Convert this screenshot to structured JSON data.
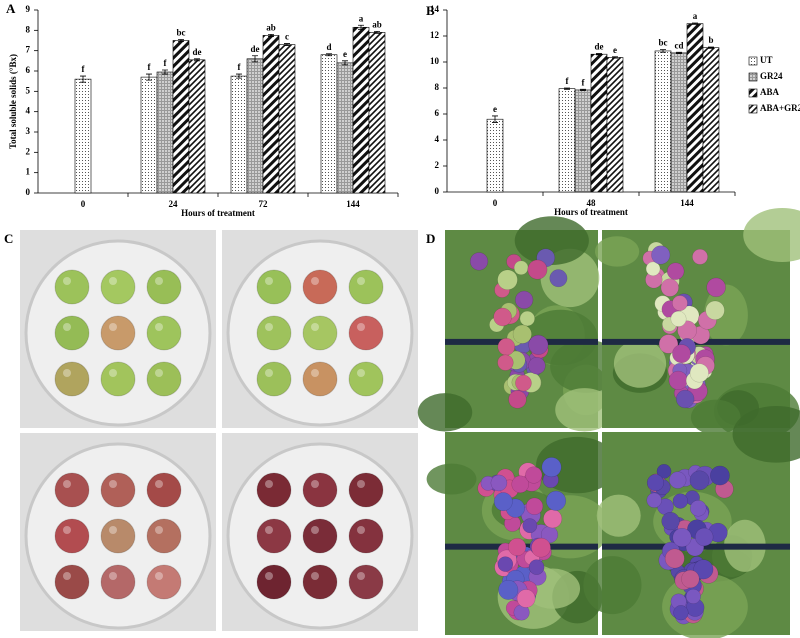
{
  "chart_data": [
    {
      "type": "bar",
      "panel_label": "A",
      "y_label": "Total soluble solids (°Bx)",
      "x_label": "Hours of treatment",
      "categories": [
        "0",
        "24",
        "72",
        "144"
      ],
      "ylim": [
        0,
        9
      ],
      "yticks": [
        0,
        1,
        2,
        3,
        4,
        5,
        6,
        7,
        8,
        9
      ],
      "grid": false,
      "legend": false,
      "series": [
        {
          "pattern": "dots",
          "color": "#000000",
          "values": [
            5.6,
            5.7,
            5.75,
            6.8
          ],
          "errors": [
            0.15,
            0.15,
            0.1,
            0.05
          ],
          "letters": [
            "f",
            "f",
            "f",
            "d"
          ]
        },
        {
          "pattern": "grid",
          "color": "#000000",
          "values": [
            null,
            5.95,
            6.6,
            6.4
          ],
          "errors": [
            null,
            0.1,
            0.15,
            0.1
          ],
          "letters": [
            null,
            "f",
            "de",
            "e"
          ]
        },
        {
          "pattern": "stripes",
          "color": "#000000",
          "values": [
            null,
            7.5,
            7.75,
            8.15
          ],
          "errors": [
            null,
            0.05,
            0.05,
            0.1
          ],
          "letters": [
            null,
            "bc",
            "ab",
            "a"
          ]
        },
        {
          "pattern": "zigzag",
          "color": "#000000",
          "values": [
            null,
            6.55,
            7.3,
            7.9
          ],
          "errors": [
            null,
            0.05,
            0.05,
            0.05
          ],
          "letters": [
            null,
            "de",
            "c",
            "ab"
          ]
        }
      ]
    },
    {
      "type": "bar",
      "panel_label": "B",
      "x_label": "Hours of treatment",
      "categories": [
        "0",
        "48",
        "144"
      ],
      "ylim": [
        0,
        14
      ],
      "yticks": [
        0,
        2,
        4,
        6,
        8,
        10,
        12,
        14
      ],
      "grid": false,
      "legend": "right",
      "series": [
        {
          "name": "UT",
          "pattern": "dots",
          "color": "#000000",
          "values": [
            5.6,
            7.95,
            10.85
          ],
          "errors": [
            0.25,
            0.05,
            0.1
          ],
          "letters": [
            "e",
            "f",
            "bc"
          ]
        },
        {
          "name": "GR24",
          "pattern": "grid",
          "color": "#000000",
          "values": [
            null,
            7.85,
            10.7
          ],
          "errors": [
            null,
            0.05,
            0.05
          ],
          "letters": [
            null,
            "f",
            "cd"
          ]
        },
        {
          "name": "ABA",
          "pattern": "stripes",
          "color": "#000000",
          "values": [
            null,
            10.6,
            12.95
          ],
          "errors": [
            null,
            0.05,
            0.05
          ],
          "letters": [
            null,
            "de",
            "a"
          ]
        },
        {
          "name": "ABA+GR24",
          "pattern": "zigzag",
          "color": "#000000",
          "values": [
            null,
            10.35,
            11.1
          ],
          "errors": [
            null,
            0.05,
            0.05
          ],
          "letters": [
            null,
            "e",
            "b"
          ]
        }
      ]
    }
  ],
  "photo_panels": [
    {
      "label": "C"
    },
    {
      "label": "D"
    }
  ]
}
